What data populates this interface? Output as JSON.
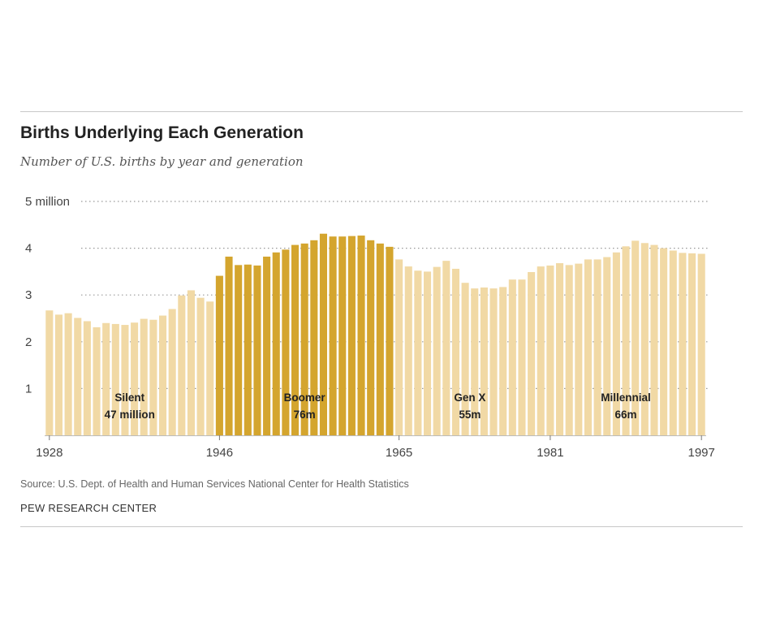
{
  "header": {
    "title": "Births Underlying Each Generation",
    "subtitle": "Number of U.S. births by year and generation"
  },
  "footer": {
    "source": "Source: U.S. Dept. of Health and Human Services National Center for Health Statistics",
    "org": "PEW RESEARCH CENTER"
  },
  "colors": {
    "light_bar": "#f1d9a5",
    "boomer_bar": "#d4a52e",
    "grid": "#999999",
    "axis": "#bbbbbb",
    "text": "#444444"
  },
  "chart_data": {
    "type": "bar",
    "title": "Births Underlying Each Generation",
    "subtitle": "Number of U.S. births by year and generation",
    "xlabel": "",
    "ylabel": "",
    "unit": "millions",
    "ylim": [
      0,
      5
    ],
    "yticks": [
      1,
      2,
      3,
      4,
      5
    ],
    "ytick_labels": [
      "1",
      "2",
      "3",
      "4",
      "5 million"
    ],
    "xticks": [
      1928,
      1946,
      1965,
      1981,
      1997
    ],
    "x": [
      1928,
      1929,
      1930,
      1931,
      1932,
      1933,
      1934,
      1935,
      1936,
      1937,
      1938,
      1939,
      1940,
      1941,
      1942,
      1943,
      1944,
      1945,
      1946,
      1947,
      1948,
      1949,
      1950,
      1951,
      1952,
      1953,
      1954,
      1955,
      1956,
      1957,
      1958,
      1959,
      1960,
      1961,
      1962,
      1963,
      1964,
      1965,
      1966,
      1967,
      1968,
      1969,
      1970,
      1971,
      1972,
      1973,
      1974,
      1975,
      1976,
      1977,
      1978,
      1979,
      1980,
      1981,
      1982,
      1983,
      1984,
      1985,
      1986,
      1987,
      1988,
      1989,
      1990,
      1991,
      1992,
      1993,
      1994,
      1995,
      1996,
      1997
    ],
    "values": [
      2.67,
      2.58,
      2.61,
      2.51,
      2.44,
      2.31,
      2.4,
      2.38,
      2.36,
      2.41,
      2.49,
      2.47,
      2.56,
      2.7,
      2.99,
      3.1,
      2.94,
      2.86,
      3.41,
      3.82,
      3.64,
      3.65,
      3.63,
      3.82,
      3.91,
      3.97,
      4.07,
      4.1,
      4.17,
      4.31,
      4.25,
      4.25,
      4.26,
      4.27,
      4.17,
      4.1,
      4.03,
      3.76,
      3.61,
      3.52,
      3.5,
      3.6,
      3.73,
      3.56,
      3.26,
      3.14,
      3.16,
      3.14,
      3.17,
      3.33,
      3.33,
      3.49,
      3.61,
      3.63,
      3.68,
      3.64,
      3.67,
      3.76,
      3.76,
      3.81,
      3.91,
      4.04,
      4.16,
      4.11,
      4.07,
      4.0,
      3.95,
      3.9,
      3.89,
      3.88
    ],
    "generations": [
      {
        "name": "Silent",
        "total": "47 million",
        "start": 1928,
        "end": 1945,
        "highlight": false
      },
      {
        "name": "Boomer",
        "total": "76m",
        "start": 1946,
        "end": 1964,
        "highlight": true
      },
      {
        "name": "Gen X",
        "total": "55m",
        "start": 1965,
        "end": 1980,
        "highlight": false
      },
      {
        "name": "Millennial",
        "total": "66m",
        "start": 1981,
        "end": 1997,
        "highlight": false
      }
    ]
  }
}
